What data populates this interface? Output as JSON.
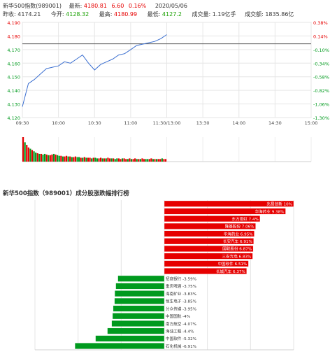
{
  "header": {
    "index_name": "新华500指数(989001)",
    "latest_label": "最新:",
    "latest_value": "4180.81",
    "change": "6.60",
    "change_pct": "0.16%",
    "date": "2020/05/06",
    "prev_close_label": "昨收:",
    "prev_close": "4174.21",
    "open_label": "今开:",
    "open": "4128.32",
    "high_label": "最高:",
    "high": "4180.99",
    "low_label": "最低:",
    "low": "4127.2",
    "volume_label": "成交量:",
    "volume": "1.19亿手",
    "amount_label": "成交额:",
    "amount": "1835.86亿"
  },
  "colors": {
    "up": "#e60000",
    "down": "#009a1e",
    "line": "#3b6fd0",
    "ref": "#555555"
  },
  "chart_data": [
    {
      "type": "line",
      "y_ticks": [
        "4,190",
        "4,180",
        "4,170",
        "4,160",
        "4,150",
        "4,140",
        "4,130",
        "4,120"
      ],
      "y_tick_values": [
        4190,
        4180,
        4170,
        4160,
        4150,
        4140,
        4130,
        4120
      ],
      "pct_ticks": [
        "0.38%",
        "0.14%",
        "-0.10%",
        "-0.34%",
        "-0.58%",
        "-0.82%",
        "-1.06%",
        "-1.30%"
      ],
      "x_ticks": [
        "09:30",
        "10:00",
        "10:30",
        "11:00",
        "11:30/13:00",
        "13:30",
        "14:00",
        "14:30",
        "15:00"
      ],
      "ylim": [
        4120,
        4190
      ],
      "prev_close": 4174.21,
      "x_minutes": [
        0,
        5,
        10,
        15,
        20,
        25,
        30,
        35,
        40,
        45,
        50,
        55,
        60,
        65,
        70,
        75,
        80,
        85,
        90,
        95,
        100,
        105,
        110,
        115,
        120
      ],
      "prices": [
        4128,
        4145,
        4148,
        4152,
        4156,
        4157,
        4158,
        4161,
        4160,
        4163,
        4166,
        4160,
        4155,
        4159,
        4161,
        4163,
        4166,
        4167,
        4170,
        4173,
        4174,
        4175,
        4176,
        4178,
        4181
      ],
      "volume_bars": [
        38,
        30,
        26,
        22,
        20,
        18,
        16,
        14,
        13,
        12,
        12,
        11,
        12,
        11,
        10,
        10,
        11,
        12,
        11,
        10,
        9,
        9,
        8,
        8,
        9,
        8,
        8,
        7,
        7,
        8,
        7,
        7,
        6,
        6,
        7,
        6,
        6,
        6,
        5,
        6,
        6,
        5,
        5,
        6,
        5,
        5,
        5,
        6,
        5,
        5,
        5,
        4,
        5,
        5,
        4,
        5,
        5,
        4,
        4,
        5,
        4,
        4,
        5,
        4,
        4,
        4,
        5,
        4,
        4,
        4,
        4,
        5,
        4,
        4,
        4,
        4,
        4,
        5,
        4,
        4
      ],
      "volume_colors": [
        "r",
        "g",
        "r",
        "r",
        "g",
        "r",
        "g",
        "g",
        "r",
        "g",
        "r",
        "g",
        "g",
        "r",
        "g",
        "r",
        "r",
        "g",
        "r",
        "g",
        "g",
        "r",
        "g",
        "r",
        "r",
        "g",
        "r",
        "g",
        "r",
        "r",
        "g",
        "g",
        "r",
        "g",
        "r",
        "g",
        "r",
        "r",
        "g",
        "r",
        "g",
        "g",
        "r",
        "r",
        "g",
        "r",
        "g",
        "r",
        "r",
        "g",
        "r",
        "g",
        "g",
        "r",
        "r",
        "g",
        "r",
        "r",
        "g",
        "r",
        "g",
        "r",
        "r",
        "g",
        "r",
        "g",
        "r",
        "r",
        "g",
        "g",
        "r",
        "r",
        "g",
        "r",
        "g",
        "r",
        "r",
        "g",
        "r",
        "r"
      ]
    },
    {
      "type": "bar",
      "title": "新华500指数（989001）成分股涨跌幅排行榜",
      "categories": [
        "兆易创新",
        "华海药业",
        "东方雨虹",
        "隆基股份",
        "华海药业",
        "长安汽车",
        "国联股份",
        "三安光电",
        "中国软件",
        "长城汽车",
        "招商银行",
        "重庆啤酒",
        "海南矿业",
        "恒生电子",
        "分众传媒",
        "中国国航",
        "南方航空",
        "海油工程",
        "中国软件",
        "石化机械"
      ],
      "labels": [
        "兆易创新 10%",
        "华海药业 9.38%",
        "东方雨虹 7.4%",
        "隆基股份 7.06%",
        "华海药业 6.95%",
        "长安汽车 6.91%",
        "国联股份 6.87%",
        "三安光电 6.83%",
        "中国软件 6.51%",
        "长城汽车 6.37%",
        "招商银行 -3.59%",
        "重庆啤酒 -3.75%",
        "海南矿业 -3.83%",
        "恒生电子 -3.85%",
        "分众传媒 -3.95%",
        "中国国航 -4%",
        "南方航空 -4.07%",
        "海油工程 -4.4%",
        "中国软件 -5.32%",
        "石化机械 -6.91%"
      ],
      "values": [
        10,
        9.38,
        7.4,
        7.06,
        6.95,
        6.91,
        6.87,
        6.83,
        6.51,
        6.37,
        -3.59,
        -3.75,
        -3.83,
        -3.85,
        -3.95,
        -4,
        -4.07,
        -4.4,
        -5.32,
        -6.91
      ],
      "xlim": [
        -10,
        10
      ]
    }
  ]
}
